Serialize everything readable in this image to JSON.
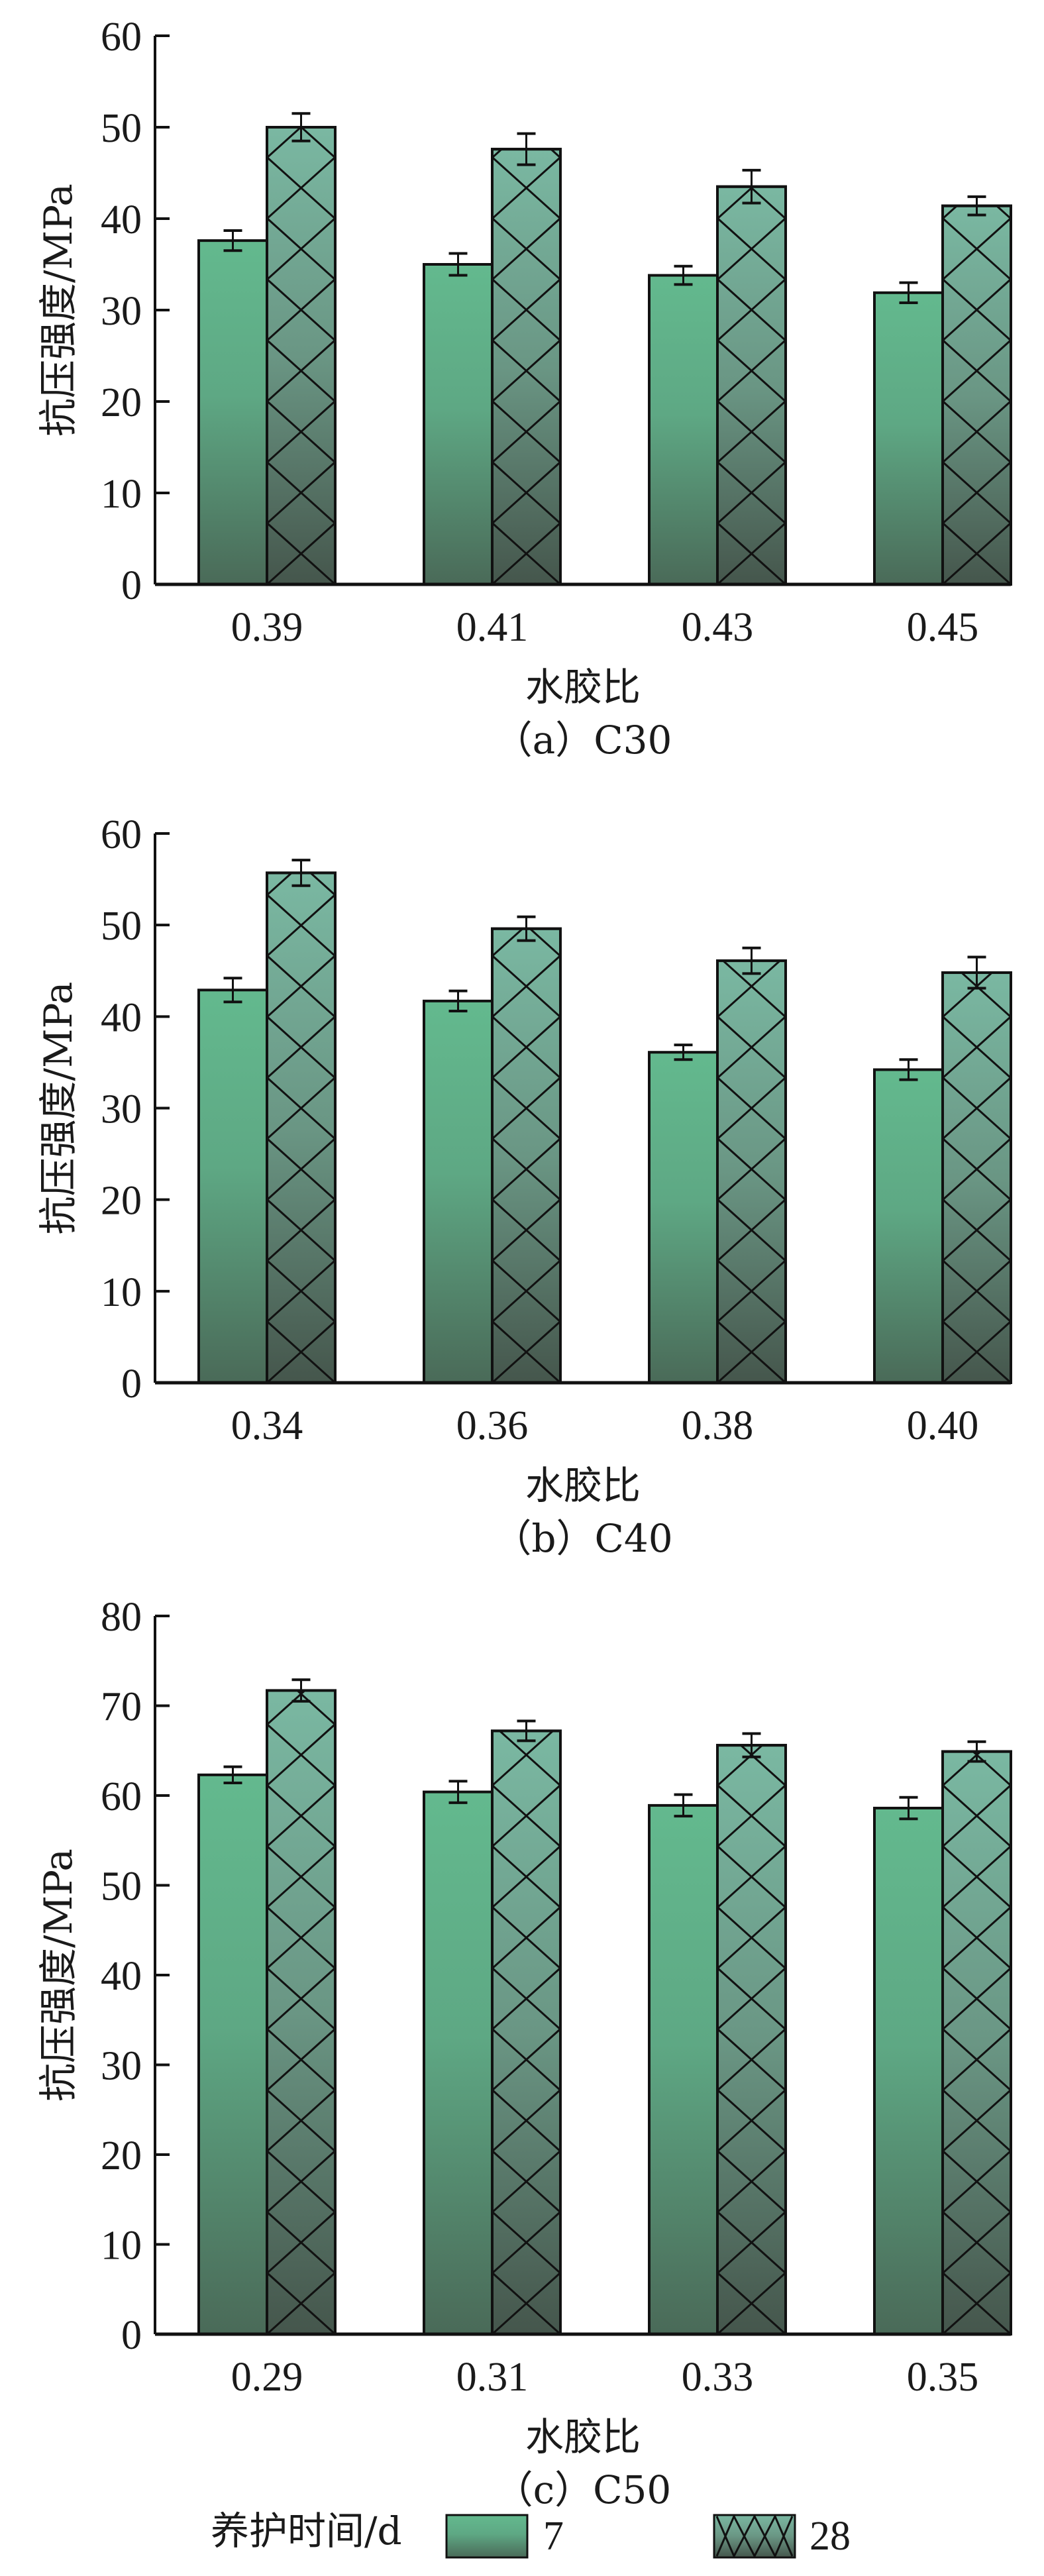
{
  "legend": {
    "title": "养护时间/d",
    "items": [
      {
        "label": "7",
        "pattern": "solid"
      },
      {
        "label": "28",
        "pattern": "crosshatch"
      }
    ]
  },
  "colors": {
    "bar_top": "#63b98e",
    "bar_bottom": "#4a6a58",
    "hatch_top": "#7ab8a2",
    "hatch_bottom": "#4a5a50",
    "stroke": "#111111"
  },
  "chart_data": [
    {
      "type": "bar",
      "title": "（a）C30",
      "xlabel": "水胶比",
      "ylabel": "抗压强度/MPa",
      "ylim": [
        0,
        60
      ],
      "yticks": [
        0,
        10,
        20,
        30,
        40,
        50,
        60
      ],
      "categories": [
        "0.39",
        "0.41",
        "0.43",
        "0.45"
      ],
      "series": [
        {
          "name": "7",
          "values": [
            37.6,
            35.0,
            33.8,
            31.9
          ],
          "errors": [
            1.1,
            1.2,
            1.0,
            1.1
          ]
        },
        {
          "name": "28",
          "values": [
            50.0,
            47.6,
            43.5,
            41.4
          ],
          "errors": [
            1.5,
            1.7,
            1.8,
            1.0
          ]
        }
      ],
      "grid": false,
      "legend": "bottom"
    },
    {
      "type": "bar",
      "title": "（b）C40",
      "xlabel": "水胶比",
      "ylabel": "抗压强度/MPa",
      "ylim": [
        0,
        60
      ],
      "yticks": [
        0,
        10,
        20,
        30,
        40,
        50,
        60
      ],
      "categories": [
        "0.34",
        "0.36",
        "0.38",
        "0.40"
      ],
      "series": [
        {
          "name": "7",
          "values": [
            42.9,
            41.7,
            36.1,
            34.2
          ],
          "errors": [
            1.3,
            1.1,
            0.8,
            1.1
          ]
        },
        {
          "name": "28",
          "values": [
            55.7,
            49.6,
            46.1,
            44.8
          ],
          "errors": [
            1.4,
            1.3,
            1.4,
            1.7
          ]
        }
      ],
      "grid": false,
      "legend": "bottom"
    },
    {
      "type": "bar",
      "title": "（c）C50",
      "xlabel": "水胶比",
      "ylabel": "抗压强度/MPa",
      "ylim": [
        0,
        80
      ],
      "yticks": [
        0,
        10,
        20,
        30,
        40,
        50,
        60,
        70,
        80
      ],
      "categories": [
        "0.29",
        "0.31",
        "0.33",
        "0.35"
      ],
      "series": [
        {
          "name": "7",
          "values": [
            62.3,
            60.4,
            58.9,
            58.6
          ],
          "errors": [
            0.9,
            1.2,
            1.2,
            1.2
          ]
        },
        {
          "name": "28",
          "values": [
            71.7,
            67.2,
            65.6,
            64.9
          ],
          "errors": [
            1.2,
            1.1,
            1.3,
            1.1
          ]
        }
      ],
      "grid": false,
      "legend": "bottom"
    }
  ]
}
